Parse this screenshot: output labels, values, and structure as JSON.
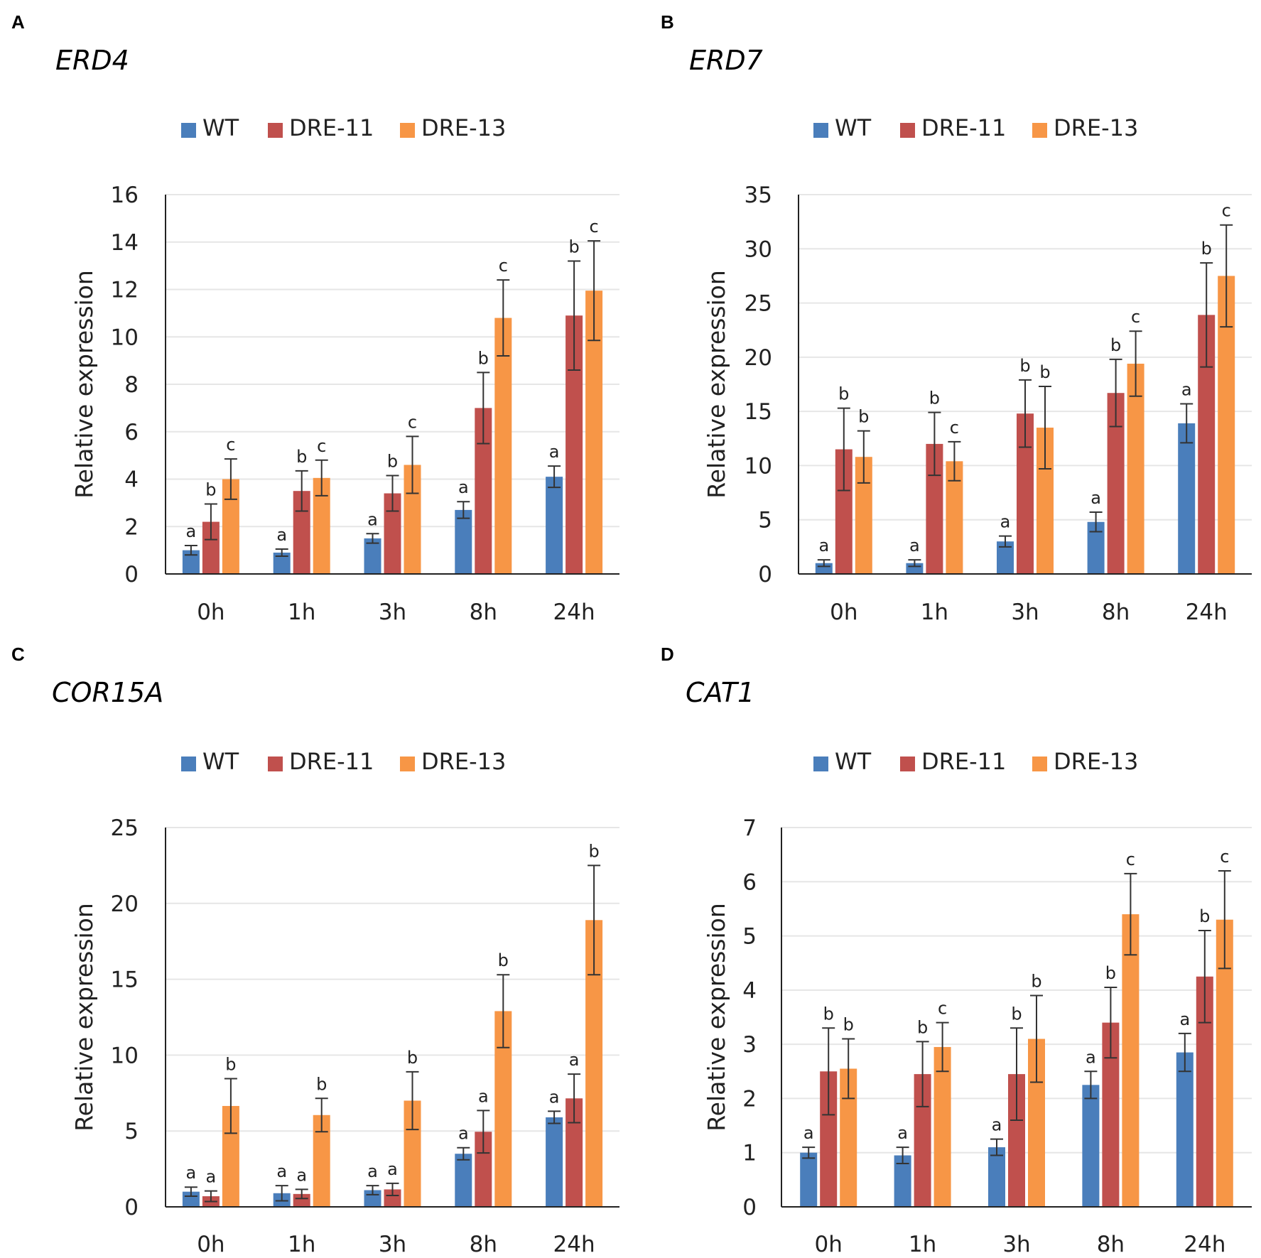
{
  "colors": {
    "WT": "#4a7ebb",
    "DRE-11": "#c0504d",
    "DRE-13": "#f79646",
    "grid": "#e6e6e6",
    "axis": "#222222",
    "error": "#333333"
  },
  "chart_data": [
    {
      "type": "bar",
      "panel": "A",
      "title": "ERD4",
      "ylabel": "Relative expression",
      "xlabel": "",
      "categories": [
        "0h",
        "1h",
        "3h",
        "8h",
        "24h"
      ],
      "ylim": [
        0,
        16
      ],
      "yticks": [
        0,
        2,
        4,
        6,
        8,
        10,
        12,
        14,
        16
      ],
      "legend": [
        "WT",
        "DRE-11",
        "DRE-13"
      ],
      "series": [
        {
          "name": "WT",
          "values": [
            1.0,
            0.9,
            1.5,
            2.7,
            4.1
          ],
          "errors": [
            0.2,
            0.15,
            0.2,
            0.35,
            0.45
          ],
          "labels": [
            "a",
            "a",
            "a",
            "a",
            "a"
          ]
        },
        {
          "name": "DRE-11",
          "values": [
            2.2,
            3.5,
            3.4,
            7.0,
            10.9
          ],
          "errors": [
            0.75,
            0.85,
            0.75,
            1.5,
            2.3
          ],
          "labels": [
            "b",
            "b",
            "b",
            "b",
            "b"
          ]
        },
        {
          "name": "DRE-13",
          "values": [
            4.0,
            4.05,
            4.6,
            10.8,
            11.95
          ],
          "errors": [
            0.85,
            0.75,
            1.2,
            1.6,
            2.1
          ],
          "labels": [
            "c",
            "c",
            "c",
            "c",
            "c"
          ]
        }
      ]
    },
    {
      "type": "bar",
      "panel": "B",
      "title": "ERD7",
      "ylabel": "Relative expression",
      "xlabel": "",
      "categories": [
        "0h",
        "1h",
        "3h",
        "8h",
        "24h"
      ],
      "ylim": [
        0,
        35
      ],
      "yticks": [
        0,
        5,
        10,
        15,
        20,
        25,
        30,
        35
      ],
      "legend": [
        "WT",
        "DRE-11",
        "DRE-13"
      ],
      "series": [
        {
          "name": "WT",
          "values": [
            1.0,
            1.0,
            3.0,
            4.8,
            13.9
          ],
          "errors": [
            0.3,
            0.3,
            0.5,
            0.9,
            1.8
          ],
          "labels": [
            "a",
            "a",
            "a",
            "a",
            "a"
          ]
        },
        {
          "name": "DRE-11",
          "values": [
            11.5,
            12.0,
            14.8,
            16.7,
            23.9
          ],
          "errors": [
            3.8,
            2.9,
            3.1,
            3.1,
            4.8
          ],
          "labels": [
            "b",
            "b",
            "b",
            "b",
            "b"
          ]
        },
        {
          "name": "DRE-13",
          "values": [
            10.8,
            10.4,
            13.5,
            19.4,
            27.5
          ],
          "errors": [
            2.4,
            1.8,
            3.8,
            3.0,
            4.7
          ],
          "labels": [
            "b",
            "c",
            "b",
            "c",
            "c"
          ]
        }
      ]
    },
    {
      "type": "bar",
      "panel": "C",
      "title": "COR15A",
      "ylabel": "Relative expression",
      "xlabel": "",
      "categories": [
        "0h",
        "1h",
        "3h",
        "8h",
        "24h"
      ],
      "ylim": [
        0,
        25
      ],
      "yticks": [
        0,
        5,
        10,
        15,
        20,
        25
      ],
      "legend": [
        "WT",
        "DRE-11",
        "DRE-13"
      ],
      "series": [
        {
          "name": "WT",
          "values": [
            1.0,
            0.9,
            1.1,
            3.5,
            5.9
          ],
          "errors": [
            0.3,
            0.5,
            0.3,
            0.4,
            0.4
          ],
          "labels": [
            "a",
            "a",
            "a",
            "a",
            "a"
          ]
        },
        {
          "name": "DRE-11",
          "values": [
            0.7,
            0.85,
            1.15,
            4.95,
            7.15
          ],
          "errors": [
            0.35,
            0.3,
            0.4,
            1.4,
            1.6
          ],
          "labels": [
            "a",
            "a",
            "a",
            "a",
            "a"
          ]
        },
        {
          "name": "DRE-13",
          "values": [
            6.65,
            6.05,
            7.0,
            12.9,
            18.9
          ],
          "errors": [
            1.8,
            1.1,
            1.9,
            2.4,
            3.6
          ],
          "labels": [
            "b",
            "b",
            "b",
            "b",
            "b"
          ]
        }
      ]
    },
    {
      "type": "bar",
      "panel": "D",
      "title": "CAT1",
      "ylabel": "Relative expression",
      "xlabel": "",
      "categories": [
        "0h",
        "1h",
        "3h",
        "8h",
        "24h"
      ],
      "ylim": [
        0,
        7
      ],
      "yticks": [
        0,
        1,
        2,
        3,
        4,
        5,
        6,
        7
      ],
      "legend": [
        "WT",
        "DRE-11",
        "DRE-13"
      ],
      "series": [
        {
          "name": "WT",
          "values": [
            1.0,
            0.95,
            1.1,
            2.25,
            2.85
          ],
          "errors": [
            0.1,
            0.15,
            0.15,
            0.25,
            0.35
          ],
          "labels": [
            "a",
            "a",
            "a",
            "a",
            "a"
          ]
        },
        {
          "name": "DRE-11",
          "values": [
            2.5,
            2.45,
            2.45,
            3.4,
            4.25
          ],
          "errors": [
            0.8,
            0.6,
            0.85,
            0.65,
            0.85
          ],
          "labels": [
            "b",
            "b",
            "b",
            "b",
            "b"
          ]
        },
        {
          "name": "DRE-13",
          "values": [
            2.55,
            2.95,
            3.1,
            5.4,
            5.3
          ],
          "errors": [
            0.55,
            0.45,
            0.8,
            0.75,
            0.9
          ],
          "labels": [
            "b",
            "c",
            "b",
            "c",
            "c"
          ]
        }
      ]
    }
  ]
}
